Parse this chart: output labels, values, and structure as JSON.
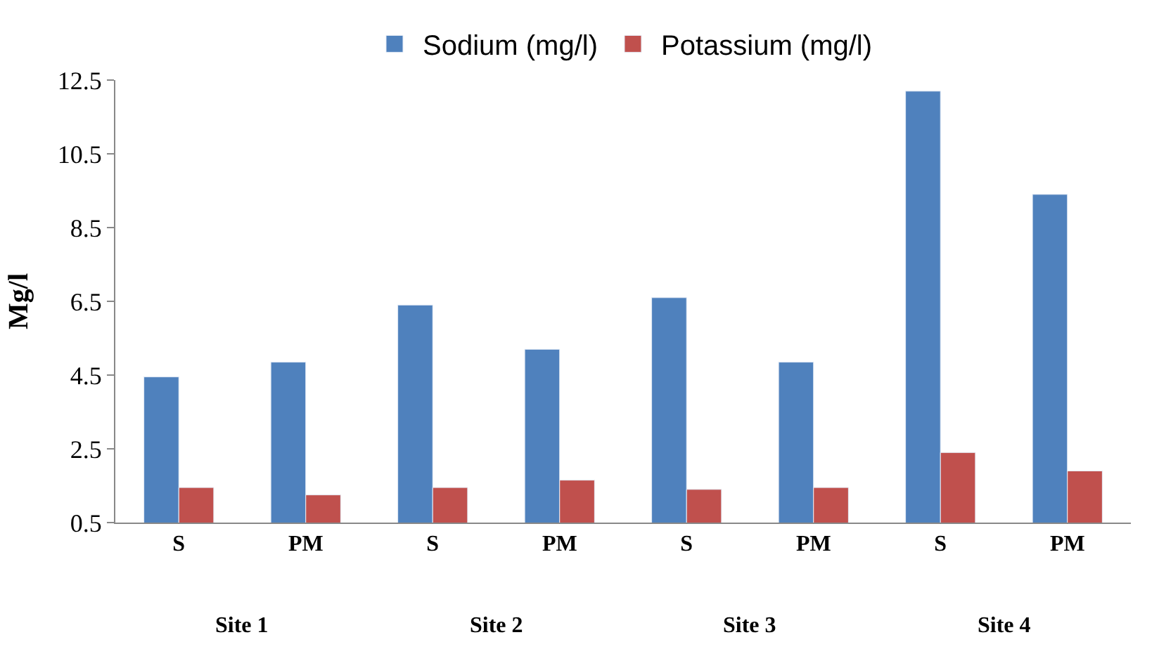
{
  "chart_data": {
    "type": "bar",
    "ylabel": "Mg/l",
    "categories": [
      "S",
      "PM",
      "S",
      "PM",
      "S",
      "PM",
      "S",
      "PM"
    ],
    "series": [
      {
        "name": "Sodium (mg/l)",
        "color": "#4f81bd",
        "values": [
          4.45,
          4.85,
          6.4,
          5.2,
          6.6,
          4.85,
          12.2,
          9.4
        ]
      },
      {
        "name": "Potassium (mg/l)",
        "color": "#c0504d",
        "values": [
          1.45,
          1.25,
          1.45,
          1.65,
          1.4,
          1.45,
          2.4,
          1.9
        ]
      }
    ],
    "annotations": [
      "Site 1",
      "Site 2",
      "Site 3",
      "Site 4"
    ],
    "ylim": [
      0.5,
      12.5
    ],
    "yticks": [
      0.5,
      2.5,
      4.5,
      6.5,
      8.5,
      10.5,
      12.5
    ],
    "legend": "top"
  }
}
